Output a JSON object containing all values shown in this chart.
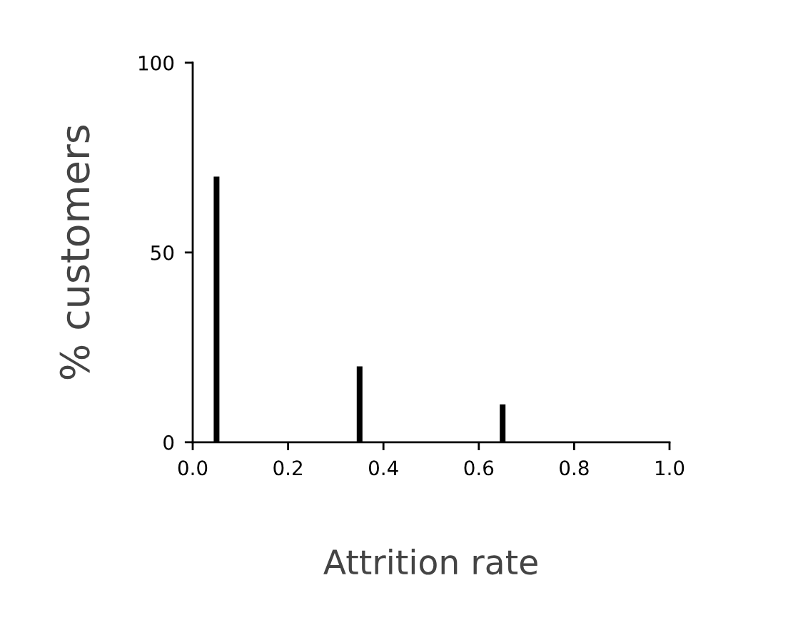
{
  "chart_data": {
    "type": "bar",
    "xlabel": "Attrition rate",
    "ylabel": "% customers",
    "x": [
      0.05,
      0.35,
      0.65
    ],
    "values": [
      70,
      20,
      10
    ],
    "color": "#000000",
    "xlim": [
      0,
      1
    ],
    "xticks": [
      {
        "value": 0,
        "label": "0.0"
      },
      {
        "value": 0.2,
        "label": "0.2"
      },
      {
        "value": 0.4,
        "label": "0.4"
      },
      {
        "value": 0.6,
        "label": "0.6"
      },
      {
        "value": 0.8,
        "label": "0.8"
      },
      {
        "value": 1,
        "label": "1.0"
      }
    ],
    "ylim": [
      0,
      100
    ],
    "yticks": [
      0,
      50,
      100
    ],
    "grid": false,
    "legend": false
  }
}
